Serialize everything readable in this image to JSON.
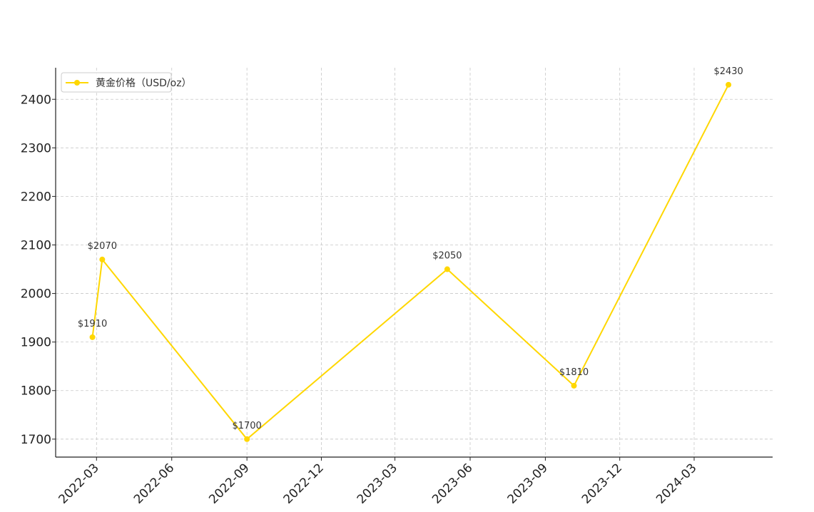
{
  "chart_data": {
    "type": "line",
    "title": "",
    "xlabel": "",
    "ylabel": "",
    "x_ticks": [
      "2022-03",
      "2022-06",
      "2022-09",
      "2022-12",
      "2023-03",
      "2023-06",
      "2023-09",
      "2023-12",
      "2024-03"
    ],
    "y_ticks": [
      1700,
      1800,
      1900,
      2000,
      2100,
      2200,
      2300,
      2400
    ],
    "xlim": [
      "2022-01-10",
      "2024-06-05"
    ],
    "ylim": [
      1663,
      2465
    ],
    "grid": true,
    "legend_position": "top-left",
    "series": [
      {
        "name": "黄金价格（USD/oz）",
        "color": "#FFD700",
        "points": [
          {
            "x": "2022-02-24",
            "y": 1910,
            "label": "$1910"
          },
          {
            "x": "2022-03-08",
            "y": 2070,
            "label": "$2070"
          },
          {
            "x": "2022-09-01",
            "y": 1700,
            "label": "$1700"
          },
          {
            "x": "2023-05-04",
            "y": 2050,
            "label": "$2050"
          },
          {
            "x": "2023-10-06",
            "y": 1810,
            "label": "$1810"
          },
          {
            "x": "2024-04-12",
            "y": 2430,
            "label": "$2430"
          }
        ]
      }
    ]
  }
}
